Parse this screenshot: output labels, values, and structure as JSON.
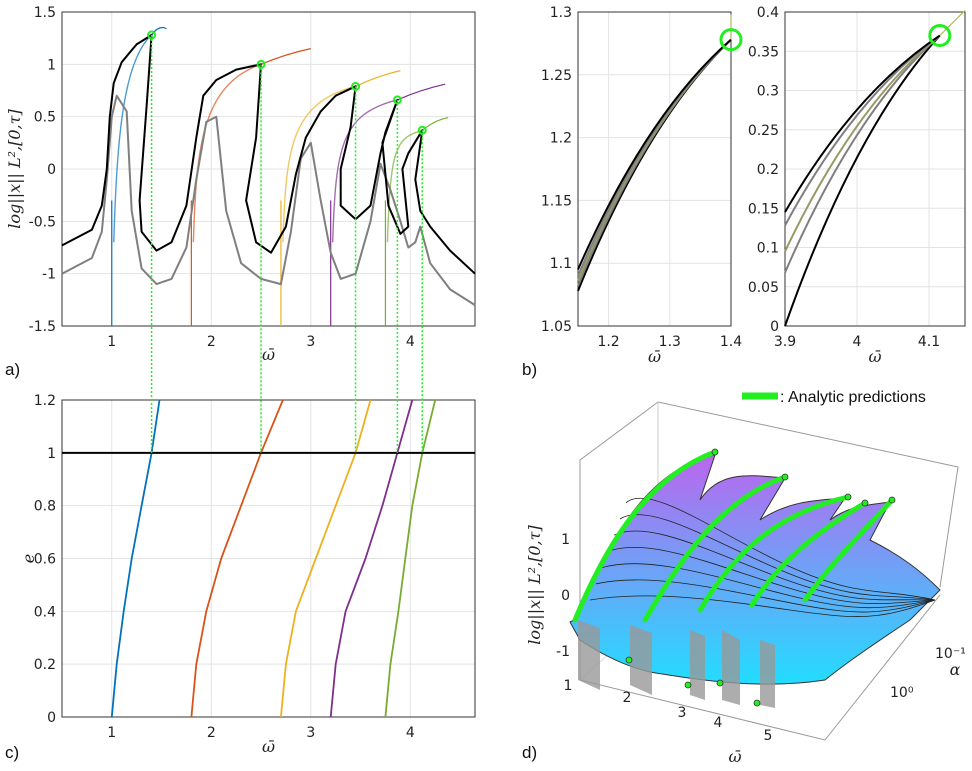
{
  "panel_labels": {
    "a": "a)",
    "b": "b)",
    "c": "c)",
    "d": "d)"
  },
  "legend": {
    "label": ": Analytic predictions",
    "color": "#22ee22"
  },
  "axis_labels": {
    "omega": "ω̄",
    "norm": "log||x||",
    "norm_sub": "L²,[0,τ]",
    "e": "e",
    "alpha": "α"
  },
  "colors": {
    "modes": [
      "#0072BD",
      "#D95319",
      "#EDB120",
      "#7E2F8E",
      "#77AC30"
    ],
    "black": "#000000",
    "gray": "#7f7f7f",
    "predict": "#22ee22",
    "surface_top": "#bb66ee",
    "surface_bottom": "#22ddff"
  },
  "chart_data": [
    {
      "id": "a",
      "type": "line",
      "xlabel": "ω̄",
      "ylabel": "log||x||_{L²,[0,τ]}",
      "xlim": [
        0.5,
        4.65
      ],
      "ylim": [
        -1.5,
        1.5
      ],
      "xticks": [
        1,
        2,
        3,
        4
      ],
      "yticks": [
        -1.5,
        -1,
        -0.5,
        0,
        0.5,
        1,
        1.5
      ],
      "grid": true,
      "peaks": [
        {
          "x": 1.4,
          "y": 1.28,
          "onset": 1.0,
          "end": 1.55,
          "end_y": 1.34
        },
        {
          "x": 2.5,
          "y": 1.0,
          "onset": 1.8,
          "end": 3.0,
          "end_y": 1.15
        },
        {
          "x": 3.45,
          "y": 0.79,
          "onset": 2.7,
          "end": 3.9,
          "end_y": 0.94
        },
        {
          "x": 3.87,
          "y": 0.66,
          "onset": 3.2,
          "end": 4.35,
          "end_y": 0.81
        },
        {
          "x": 4.12,
          "y": 0.37,
          "onset": 3.75,
          "end": 4.38,
          "end_y": 0.49
        }
      ],
      "black_curve": [
        [
          0.5,
          -0.73
        ],
        [
          0.8,
          -0.58
        ],
        [
          0.9,
          -0.35
        ],
        [
          0.95,
          0.0
        ],
        [
          0.98,
          0.5
        ],
        [
          1.02,
          0.82
        ],
        [
          1.1,
          1.02
        ],
        [
          1.25,
          1.19
        ],
        [
          1.4,
          1.28
        ],
        [
          1.35,
          0.6
        ],
        [
          1.28,
          -0.3
        ],
        [
          1.3,
          -0.6
        ],
        [
          1.45,
          -0.78
        ],
        [
          1.6,
          -0.7
        ],
        [
          1.75,
          -0.35
        ],
        [
          1.85,
          0.3
        ],
        [
          1.92,
          0.7
        ],
        [
          2.05,
          0.85
        ],
        [
          2.25,
          0.95
        ],
        [
          2.5,
          1.0
        ],
        [
          2.45,
          0.3
        ],
        [
          2.35,
          -0.3
        ],
        [
          2.45,
          -0.7
        ],
        [
          2.6,
          -0.8
        ],
        [
          2.75,
          -0.55
        ],
        [
          2.85,
          -0.05
        ],
        [
          2.95,
          0.3
        ],
        [
          3.1,
          0.55
        ],
        [
          3.25,
          0.7
        ],
        [
          3.45,
          0.79
        ],
        [
          3.4,
          0.4
        ],
        [
          3.3,
          0.0
        ],
        [
          3.3,
          -0.35
        ],
        [
          3.45,
          -0.48
        ],
        [
          3.6,
          -0.35
        ],
        [
          3.7,
          0.15
        ],
        [
          3.75,
          0.35
        ],
        [
          3.87,
          0.66
        ],
        [
          3.72,
          0.25
        ],
        [
          3.78,
          -0.35
        ],
        [
          3.9,
          -0.62
        ],
        [
          3.98,
          -0.55
        ],
        [
          3.92,
          0.0
        ],
        [
          3.98,
          0.15
        ],
        [
          4.12,
          0.37
        ],
        [
          4.05,
          -0.1
        ],
        [
          4.1,
          -0.4
        ],
        [
          4.2,
          -0.55
        ],
        [
          4.4,
          -0.78
        ],
        [
          4.65,
          -1.0
        ]
      ],
      "gray_curve": [
        [
          0.5,
          -1.0
        ],
        [
          0.8,
          -0.85
        ],
        [
          0.9,
          -0.6
        ],
        [
          0.95,
          -0.1
        ],
        [
          1.0,
          0.5
        ],
        [
          1.05,
          0.7
        ],
        [
          1.15,
          0.55
        ],
        [
          1.2,
          -0.4
        ],
        [
          1.3,
          -0.95
        ],
        [
          1.45,
          -1.1
        ],
        [
          1.6,
          -1.05
        ],
        [
          1.75,
          -0.75
        ],
        [
          1.85,
          -0.1
        ],
        [
          1.95,
          0.45
        ],
        [
          2.05,
          0.5
        ],
        [
          2.15,
          -0.4
        ],
        [
          2.3,
          -0.9
        ],
        [
          2.5,
          -1.05
        ],
        [
          2.7,
          -1.1
        ],
        [
          2.8,
          -0.6
        ],
        [
          2.9,
          0.1
        ],
        [
          3.0,
          0.25
        ],
        [
          3.1,
          -0.3
        ],
        [
          3.2,
          -0.8
        ],
        [
          3.3,
          -1.05
        ],
        [
          3.45,
          -1.0
        ],
        [
          3.6,
          -0.5
        ],
        [
          3.7,
          0.05
        ],
        [
          3.8,
          -0.2
        ],
        [
          3.9,
          -0.5
        ],
        [
          3.98,
          -0.75
        ],
        [
          4.05,
          -0.7
        ],
        [
          4.1,
          -0.55
        ],
        [
          4.2,
          -0.9
        ],
        [
          4.4,
          -1.15
        ],
        [
          4.65,
          -1.3
        ]
      ]
    },
    {
      "id": "b1",
      "type": "line",
      "xlabel": "ω̄",
      "xlim": [
        1.15,
        1.4
      ],
      "ylim": [
        1.05,
        1.3
      ],
      "xticks": [
        1.2,
        1.3,
        1.4
      ],
      "yticks": [
        1.05,
        1.1,
        1.15,
        1.2,
        1.25,
        1.3
      ],
      "grid": true,
      "marker": {
        "x": 1.4,
        "y": 1.278
      },
      "series_start_y": [
        1.078,
        1.082,
        1.086,
        1.09,
        1.095
      ],
      "end_y": 1.278
    },
    {
      "id": "b2",
      "type": "line",
      "xlabel": "ω̄",
      "xlim": [
        3.9,
        4.15
      ],
      "ylim": [
        0,
        0.4
      ],
      "xticks": [
        3.9,
        4,
        4.1
      ],
      "yticks": [
        0,
        0.05,
        0.1,
        0.15,
        0.2,
        0.25,
        0.3,
        0.35,
        0.4
      ],
      "grid": true,
      "marker": {
        "x": 4.115,
        "y": 0.37
      },
      "series_start_y": [
        0.0,
        0.068,
        0.095,
        0.128,
        0.145
      ],
      "end_y": 0.37
    },
    {
      "id": "c",
      "type": "line",
      "xlabel": "ω̄",
      "ylabel": "e",
      "xlim": [
        0.5,
        4.65
      ],
      "ylim": [
        0,
        1.2
      ],
      "xticks": [
        1,
        2,
        3,
        4
      ],
      "yticks": [
        0,
        0.2,
        0.4,
        0.6,
        0.8,
        1,
        1.2
      ],
      "grid": true,
      "hline": 1,
      "series": [
        {
          "points": [
            [
              1.0,
              0
            ],
            [
              1.05,
              0.2
            ],
            [
              1.12,
              0.4
            ],
            [
              1.2,
              0.6
            ],
            [
              1.3,
              0.8
            ],
            [
              1.4,
              1.0
            ],
            [
              1.48,
              1.2
            ]
          ]
        },
        {
          "points": [
            [
              1.8,
              0
            ],
            [
              1.85,
              0.2
            ],
            [
              1.95,
              0.4
            ],
            [
              2.1,
              0.6
            ],
            [
              2.3,
              0.8
            ],
            [
              2.5,
              1.0
            ],
            [
              2.72,
              1.2
            ]
          ]
        },
        {
          "points": [
            [
              2.7,
              0
            ],
            [
              2.75,
              0.2
            ],
            [
              2.85,
              0.4
            ],
            [
              3.05,
              0.6
            ],
            [
              3.25,
              0.8
            ],
            [
              3.45,
              1.0
            ],
            [
              3.6,
              1.2
            ]
          ]
        },
        {
          "points": [
            [
              3.2,
              0
            ],
            [
              3.25,
              0.2
            ],
            [
              3.35,
              0.4
            ],
            [
              3.55,
              0.6
            ],
            [
              3.72,
              0.8
            ],
            [
              3.87,
              1.0
            ],
            [
              4.02,
              1.2
            ]
          ]
        },
        {
          "points": [
            [
              3.75,
              0
            ],
            [
              3.8,
              0.2
            ],
            [
              3.88,
              0.4
            ],
            [
              3.95,
              0.6
            ],
            [
              4.02,
              0.8
            ],
            [
              4.12,
              1.0
            ],
            [
              4.25,
              1.2
            ]
          ]
        }
      ]
    },
    {
      "id": "d",
      "type": "area",
      "xlabel": "ω̄",
      "ylabel": "log||x||_{L²,[0,τ]}",
      "zlabel": "α",
      "xticks": [
        1,
        2,
        3,
        4,
        5
      ],
      "yticks": [
        -1,
        0,
        1
      ],
      "alpha_ticks": [
        "10⁻¹",
        "10⁰"
      ]
    }
  ]
}
